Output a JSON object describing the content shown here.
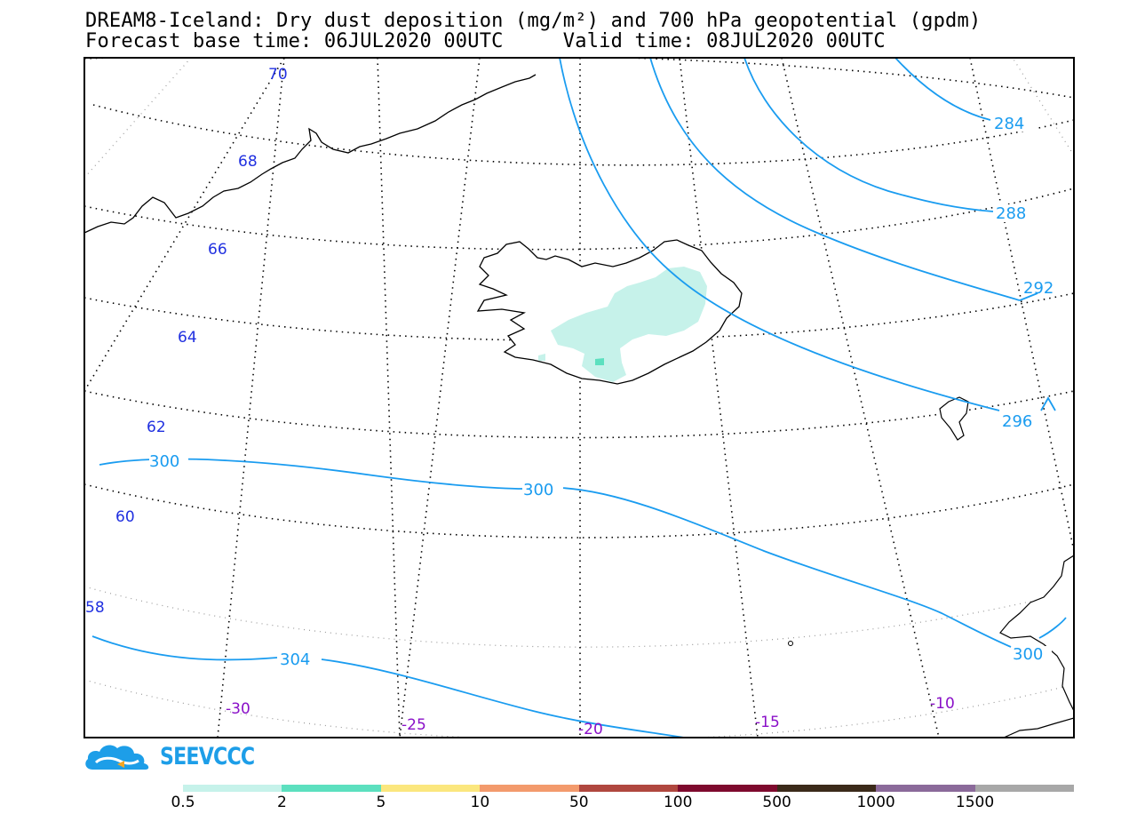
{
  "title": {
    "line1": "DREAM8-Iceland: Dry dust deposition (mg/m²) and 700 hPa geopotential (gpdm)",
    "line2": "Forecast base time: 06JUL2020 00UTC     Valid time: 08JUL2020 00UTC"
  },
  "lat_labels": [
    "70",
    "68",
    "66",
    "64",
    "62",
    "60",
    "58"
  ],
  "lon_labels": [
    "-30",
    "-25",
    "-20",
    "-15",
    "-10"
  ],
  "contour_labels": [
    "284",
    "288",
    "292",
    "296",
    "300",
    "300",
    "300",
    "304"
  ],
  "logo": {
    "text": "SEEVCCC",
    "icon": "cloud-icon"
  },
  "colorbar": {
    "colors": [
      "#c6f2ea",
      "#5ce0bf",
      "#fbe77e",
      "#f39a6c",
      "#b0473f",
      "#7e0a2e",
      "#3b2a1a",
      "#8b6a9a",
      "#a8a8a8"
    ],
    "labels": [
      "0.5",
      "2",
      "5",
      "10",
      "50",
      "100",
      "500",
      "1000",
      "1500"
    ]
  },
  "colors": {
    "contour": "#1a9cf0",
    "latitude_label": "#2030e0",
    "longitude_label": "#8a10c8",
    "dust_low": "#c6f2ea",
    "dust_mid": "#5ce0bf"
  }
}
